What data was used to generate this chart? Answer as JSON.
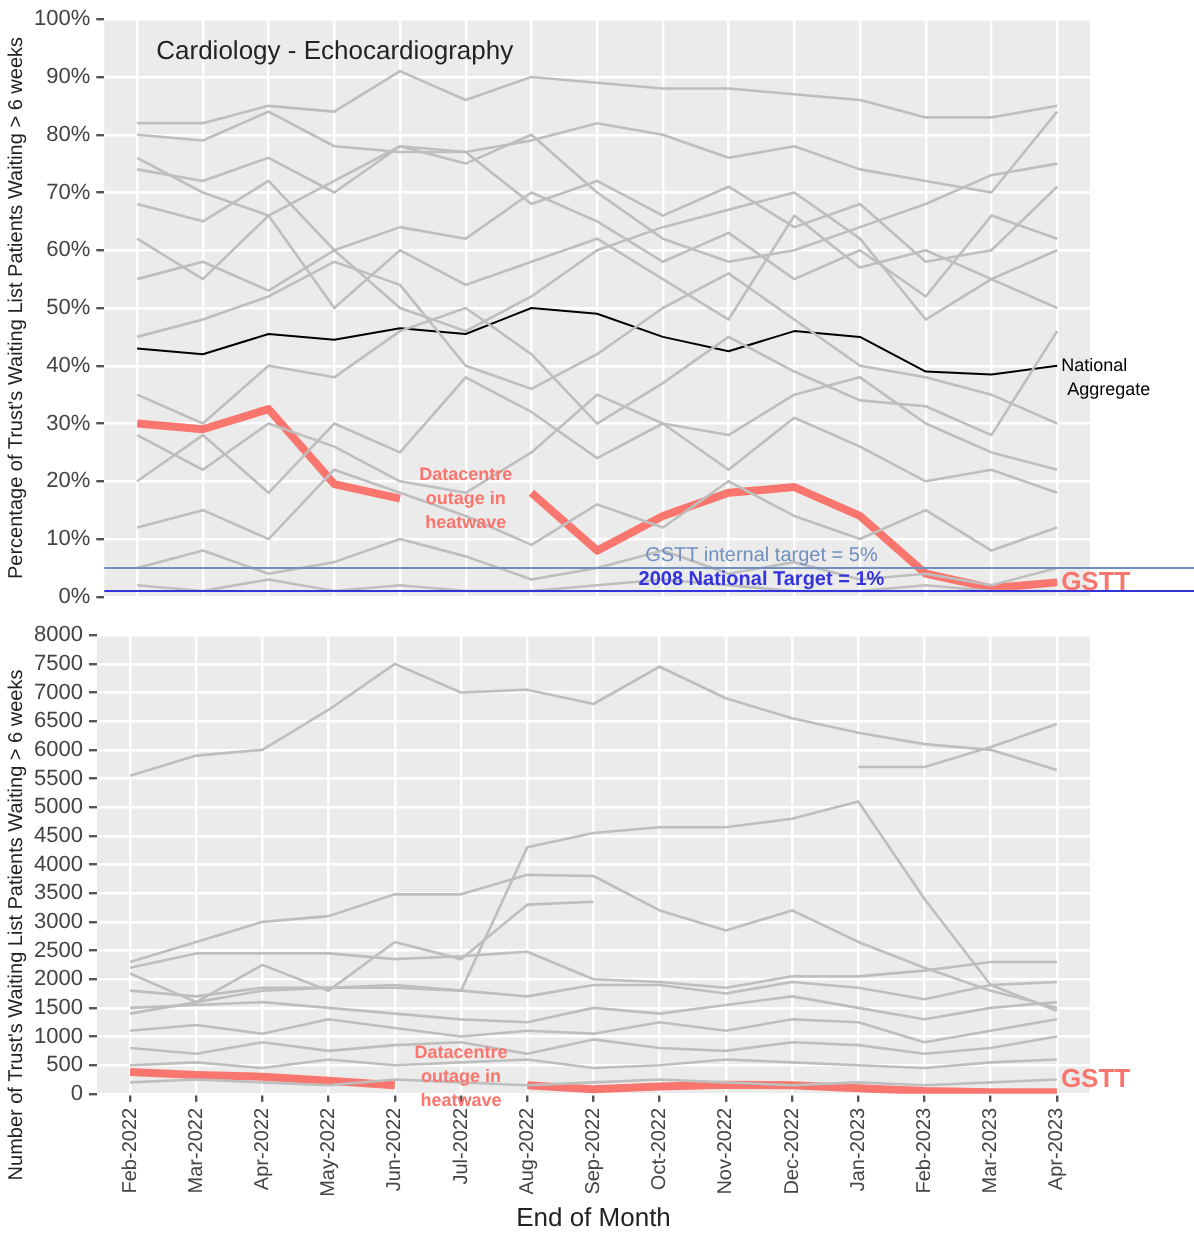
{
  "chart_data": [
    {
      "type": "line",
      "title": "Cardiology - Echocardiography",
      "ylabel": "Percentage of Trust's Waiting List Patients Waiting > 6 weeks",
      "categories": [
        "Feb-2022",
        "Mar-2022",
        "Apr-2022",
        "May-2022",
        "Jun-2022",
        "Jul-2022",
        "Aug-2022",
        "Sep-2022",
        "Oct-2022",
        "Nov-2022",
        "Dec-2022",
        "Jan-2023",
        "Feb-2023",
        "Mar-2023",
        "Apr-2023"
      ],
      "ylim": [
        0,
        100
      ],
      "yticks": [
        {
          "value": 0,
          "label": "0%"
        },
        {
          "value": 10,
          "label": "10%"
        },
        {
          "value": 20,
          "label": "20%"
        },
        {
          "value": 30,
          "label": "30%"
        },
        {
          "value": 40,
          "label": "40%"
        },
        {
          "value": 50,
          "label": "50%"
        },
        {
          "value": 60,
          "label": "60%"
        },
        {
          "value": 70,
          "label": "70%"
        },
        {
          "value": 80,
          "label": "80%"
        },
        {
          "value": 90,
          "label": "90%"
        },
        {
          "value": 100,
          "label": "100%"
        }
      ],
      "grid": true,
      "legend": false,
      "tick_labels": "y",
      "series": [
        {
          "color": "#bebebe",
          "values": [
            82,
            82,
            85,
            84,
            91,
            86,
            90,
            89,
            88,
            88,
            87,
            86,
            83,
            83,
            85
          ]
        },
        {
          "color": "#bebebe",
          "values": [
            80,
            79,
            84,
            78,
            77,
            77,
            79,
            82,
            80,
            76,
            78,
            74,
            72,
            70,
            84
          ]
        },
        {
          "color": "#bebebe",
          "values": [
            74,
            72,
            76,
            70,
            78,
            77,
            68,
            72,
            66,
            71,
            64,
            68,
            58,
            60,
            71
          ]
        },
        {
          "color": "#bebebe",
          "values": [
            76,
            70,
            66,
            72,
            78,
            75,
            80,
            70,
            62,
            58,
            60,
            64,
            68,
            73,
            75
          ]
        },
        {
          "color": "#bebebe",
          "values": [
            68,
            65,
            72,
            60,
            50,
            46,
            52,
            60,
            64,
            67,
            70,
            62,
            48,
            55,
            60
          ]
        },
        {
          "color": "#bebebe",
          "values": [
            62,
            55,
            66,
            50,
            60,
            54,
            58,
            62,
            55,
            48,
            66,
            57,
            60,
            55,
            50
          ]
        },
        {
          "color": "#bebebe",
          "values": [
            55,
            58,
            53,
            60,
            64,
            62,
            70,
            65,
            58,
            63,
            55,
            60,
            52,
            66,
            62
          ]
        },
        {
          "color": "#bebebe",
          "values": [
            45,
            48,
            52,
            58,
            54,
            40,
            36,
            42,
            50,
            56,
            48,
            40,
            38,
            35,
            30
          ]
        },
        {
          "color": "#bebebe",
          "values": [
            35,
            30,
            40,
            38,
            46,
            50,
            42,
            30,
            37,
            45,
            39,
            34,
            33,
            28,
            46
          ]
        },
        {
          "color": "#bebebe",
          "values": [
            28,
            22,
            30,
            26,
            20,
            18,
            25,
            35,
            30,
            28,
            35,
            38,
            30,
            25,
            22
          ]
        },
        {
          "color": "#bebebe",
          "values": [
            20,
            28,
            18,
            30,
            25,
            38,
            32,
            24,
            30,
            22,
            31,
            26,
            20,
            22,
            18
          ]
        },
        {
          "color": "#bebebe",
          "values": [
            12,
            15,
            10,
            22,
            18,
            14,
            9,
            16,
            12,
            20,
            14,
            10,
            15,
            8,
            12
          ]
        },
        {
          "color": "#bebebe",
          "values": [
            5,
            8,
            4,
            6,
            10,
            7,
            3,
            5,
            8,
            4,
            6,
            3,
            4,
            2,
            5
          ]
        },
        {
          "color": "#bebebe",
          "values": [
            2,
            1,
            3,
            1,
            2,
            1,
            1,
            2,
            3,
            2,
            1,
            1,
            2,
            1,
            1
          ]
        },
        {
          "name": "National Aggregate",
          "color": "#000000",
          "values": [
            43,
            42,
            45.5,
            44.5,
            46.5,
            45.5,
            50,
            49,
            45,
            42.5,
            46,
            45,
            39,
            38.5,
            40
          ]
        },
        {
          "name": "GSTT",
          "color": "#f8766d",
          "values": [
            30,
            29,
            32.5,
            19.5,
            17,
            null,
            18,
            8,
            14,
            18,
            19,
            14,
            4,
            1.5,
            2.5
          ]
        }
      ],
      "ref_lines": [
        {
          "axis": "y",
          "value": 5,
          "label": "GSTT internal target = 5%",
          "color": "#6f8fbf"
        },
        {
          "axis": "y",
          "value": 1,
          "label": "2008 National Target = 1%",
          "color": "#3333dd"
        }
      ],
      "annotations": [
        {
          "text": "Datacentre outage in heatwave",
          "x": "Jul-2022",
          "y": 17
        }
      ]
    },
    {
      "type": "line",
      "xlabel": "End of Month",
      "ylabel": "Number of Trust's Waiting List Patients Waiting > 6 weeks",
      "categories": [
        "Feb-2022",
        "Mar-2022",
        "Apr-2022",
        "May-2022",
        "Jun-2022",
        "Jul-2022",
        "Aug-2022",
        "Sep-2022",
        "Oct-2022",
        "Nov-2022",
        "Dec-2022",
        "Jan-2023",
        "Feb-2023",
        "Mar-2023",
        "Apr-2023"
      ],
      "ylim": [
        0,
        8000
      ],
      "yticks": [
        0,
        500,
        1000,
        1500,
        2000,
        2500,
        3000,
        3500,
        4000,
        4500,
        5000,
        5500,
        6000,
        6500,
        7000,
        7500,
        8000
      ],
      "grid": true,
      "legend": false,
      "series": [
        {
          "color": "#bebebe",
          "values": [
            5550,
            5900,
            6000,
            6700,
            7500,
            7000,
            7050,
            6800,
            7450,
            6900,
            6550,
            6300,
            6100,
            6000,
            5650
          ]
        },
        {
          "color": "#bebebe",
          "values": [
            null,
            null,
            null,
            null,
            null,
            null,
            null,
            null,
            null,
            null,
            null,
            5700,
            5700,
            6050,
            6450
          ]
        },
        {
          "color": "#bebebe",
          "values": [
            1400,
            1600,
            1800,
            1850,
            1900,
            1800,
            4300,
            4550,
            4650,
            4650,
            4800,
            5100,
            3400,
            1900,
            1450
          ]
        },
        {
          "color": "#bebebe",
          "values": [
            2300,
            2650,
            3000,
            3100,
            3480,
            3480,
            3820,
            3800,
            3200,
            2850,
            3200,
            2650,
            2200,
            1800,
            1500
          ]
        },
        {
          "color": "#bebebe",
          "values": [
            2200,
            2450,
            2450,
            2450,
            2350,
            2400,
            2480,
            2000,
            1950,
            1850,
            2050,
            2050,
            2150,
            2300,
            2300
          ]
        },
        {
          "color": "#bebebe",
          "values": [
            2100,
            1600,
            2250,
            1800,
            2650,
            2350,
            3300,
            3350,
            null,
            null,
            null,
            null,
            null,
            null,
            null
          ]
        },
        {
          "color": "#bebebe",
          "values": [
            1800,
            1700,
            1850,
            1850,
            1850,
            1800,
            1700,
            1900,
            1900,
            1750,
            1950,
            1850,
            1650,
            1900,
            1950
          ]
        },
        {
          "color": "#bebebe",
          "values": [
            1500,
            1550,
            1600,
            1500,
            1400,
            1300,
            1250,
            1500,
            1400,
            1550,
            1700,
            1500,
            1300,
            1500,
            1600
          ]
        },
        {
          "color": "#bebebe",
          "values": [
            1100,
            1200,
            1050,
            1300,
            1150,
            1000,
            1100,
            1050,
            1250,
            1100,
            1300,
            1250,
            900,
            1100,
            1300
          ]
        },
        {
          "color": "#bebebe",
          "values": [
            800,
            700,
            900,
            750,
            850,
            900,
            700,
            950,
            800,
            750,
            900,
            850,
            700,
            800,
            1000
          ]
        },
        {
          "color": "#bebebe",
          "values": [
            500,
            550,
            450,
            600,
            500,
            550,
            600,
            450,
            500,
            600,
            550,
            500,
            450,
            550,
            600
          ]
        },
        {
          "color": "#bebebe",
          "values": [
            200,
            250,
            200,
            150,
            250,
            200,
            150,
            200,
            250,
            200,
            150,
            200,
            150,
            200,
            250
          ]
        },
        {
          "name": "GSTT",
          "color": "#f8766d",
          "values": [
            380,
            330,
            300,
            230,
            150,
            null,
            150,
            80,
            130,
            160,
            150,
            100,
            50,
            30,
            30
          ]
        }
      ],
      "annotations": [
        {
          "text": "Datacentre outage in heatwave",
          "x": "Jul-2022",
          "y": 300
        }
      ]
    }
  ]
}
